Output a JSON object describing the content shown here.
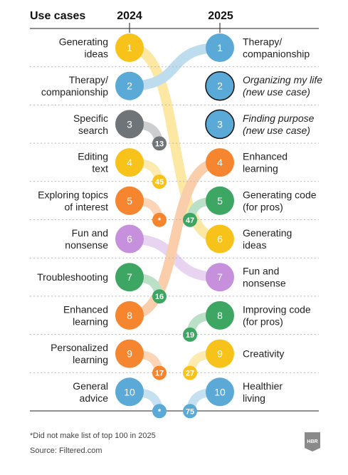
{
  "header": {
    "use_cases": "Use cases",
    "year_left": "2024",
    "year_right": "2025"
  },
  "colors": {
    "yellow": "#f7c21a",
    "blue": "#5aa9d6",
    "gray": "#6f7478",
    "orange": "#f5852e",
    "purple": "#c690dd",
    "green": "#3da662",
    "line": "#222222",
    "dots": "#b8b8b8"
  },
  "chart_data": {
    "type": "slope-ranking",
    "years": [
      "2024",
      "2025"
    ],
    "left": [
      {
        "rank": 1,
        "rank_label": "1",
        "lines": [
          "Generating",
          "ideas"
        ],
        "color": "yellow"
      },
      {
        "rank": 2,
        "rank_label": "2",
        "lines": [
          "Therapy/",
          "companionship"
        ],
        "color": "blue"
      },
      {
        "rank": 3,
        "rank_label": "3",
        "lines": [
          "Specific",
          "search"
        ],
        "color": "gray"
      },
      {
        "rank": 4,
        "rank_label": "4",
        "lines": [
          "Editing",
          "text"
        ],
        "color": "yellow"
      },
      {
        "rank": 5,
        "rank_label": "5",
        "lines": [
          "Exploring topics",
          "of interest"
        ],
        "color": "orange"
      },
      {
        "rank": 6,
        "rank_label": "6",
        "lines": [
          "Fun and",
          "nonsense"
        ],
        "color": "purple"
      },
      {
        "rank": 7,
        "rank_label": "7",
        "lines": [
          "Troubleshooting"
        ],
        "color": "green"
      },
      {
        "rank": 8,
        "rank_label": "8",
        "lines": [
          "Enhanced",
          "learning"
        ],
        "color": "orange"
      },
      {
        "rank": 9,
        "rank_label": "9",
        "lines": [
          "Personalized",
          "learning"
        ],
        "color": "orange"
      },
      {
        "rank": 10,
        "rank_label": "10",
        "lines": [
          "General",
          "advice"
        ],
        "color": "blue"
      }
    ],
    "right": [
      {
        "rank": 1,
        "rank_label": "1",
        "lines": [
          "Therapy/",
          "companionship"
        ],
        "color": "blue",
        "italic": false
      },
      {
        "rank": 2,
        "rank_label": "2",
        "lines": [
          "Organizing my life",
          "(new use case)"
        ],
        "color": "blue",
        "italic": true
      },
      {
        "rank": 3,
        "rank_label": "3",
        "lines": [
          "Finding purpose",
          "(new use case)"
        ],
        "color": "blue",
        "italic": true
      },
      {
        "rank": 4,
        "rank_label": "4",
        "lines": [
          "Enhanced",
          "learning"
        ],
        "color": "orange",
        "italic": false
      },
      {
        "rank": 5,
        "rank_label": "5",
        "lines": [
          "Generating code",
          "(for pros)"
        ],
        "color": "green",
        "italic": false
      },
      {
        "rank": 6,
        "rank_label": "6",
        "lines": [
          "Generating",
          "ideas"
        ],
        "color": "yellow",
        "italic": false
      },
      {
        "rank": 7,
        "rank_label": "7",
        "lines": [
          "Fun and",
          "nonsense"
        ],
        "color": "purple",
        "italic": false
      },
      {
        "rank": 8,
        "rank_label": "8",
        "lines": [
          "Improving code",
          "(for pros)"
        ],
        "color": "green",
        "italic": false
      },
      {
        "rank": 9,
        "rank_label": "9",
        "lines": [
          "Creativity"
        ],
        "color": "yellow",
        "italic": false
      },
      {
        "rank": 10,
        "rank_label": "10",
        "lines": [
          "Healthier",
          "living"
        ],
        "color": "blue",
        "italic": false
      }
    ],
    "connections": [
      {
        "from_rank_2024": 1,
        "to_rank_2025": 6,
        "color": "yellow"
      },
      {
        "from_rank_2024": 2,
        "to_rank_2025": 1,
        "color": "blue"
      },
      {
        "from_rank_2024": 6,
        "to_rank_2025": 7,
        "color": "purple"
      },
      {
        "from_rank_2024": 8,
        "to_rank_2025": 4,
        "color": "orange"
      }
    ],
    "dropouts": [
      {
        "from_rank_2024": 3,
        "label": "13",
        "rank_2025": 13,
        "color": "gray"
      },
      {
        "from_rank_2024": 4,
        "label": "45",
        "rank_2025": 45,
        "color": "yellow"
      },
      {
        "from_rank_2024": 5,
        "label": "*",
        "rank_2025": null,
        "color": "orange"
      },
      {
        "from_rank_2024": 7,
        "label": "16",
        "rank_2025": 16,
        "color": "green"
      },
      {
        "from_rank_2024": 9,
        "label": "17",
        "rank_2025": 17,
        "color": "orange"
      },
      {
        "from_rank_2024": 10,
        "label": "*",
        "rank_2025": null,
        "color": "blue"
      }
    ],
    "newcomers": [
      {
        "to_rank_2025": 5,
        "label": "47",
        "rank_2024": 47,
        "color": "green"
      },
      {
        "to_rank_2025": 8,
        "label": "19",
        "rank_2024": 19,
        "color": "green"
      },
      {
        "to_rank_2025": 9,
        "label": "27",
        "rank_2024": 27,
        "color": "yellow"
      },
      {
        "to_rank_2025": 10,
        "label": "75",
        "rank_2024": 75,
        "color": "blue"
      }
    ]
  },
  "footer": {
    "note": "*Did not make list of top 100 in 2025",
    "source": "Source: Filtered.com",
    "logo": "HBR"
  }
}
